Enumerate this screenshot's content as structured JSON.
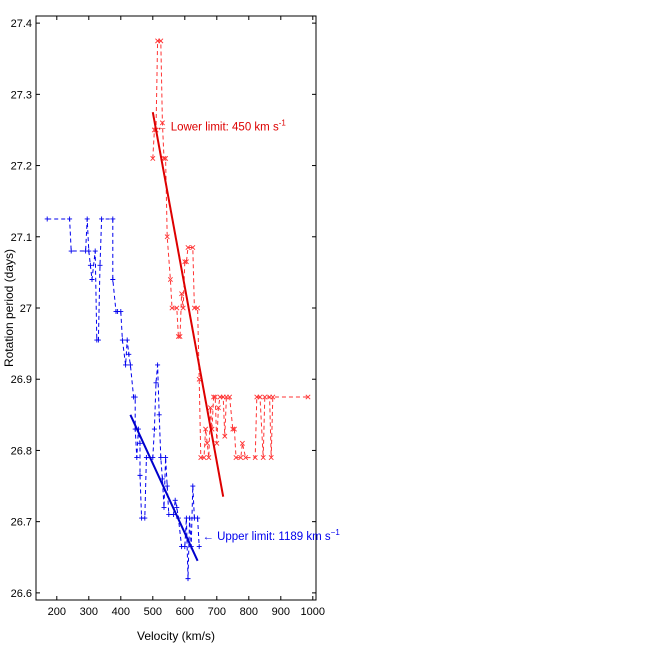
{
  "chart_data": {
    "type": "line",
    "title": "",
    "xlabel": "Velocity (km/s)",
    "ylabel": "Rotation period (days)",
    "xlim": [
      135,
      1010
    ],
    "ylim": [
      26.59,
      27.41
    ],
    "xticks": [
      200,
      300,
      400,
      500,
      600,
      700,
      800,
      900,
      1000
    ],
    "yticks": [
      26.6,
      26.7,
      26.8,
      26.9,
      27,
      27.1,
      27.2,
      27.3,
      27.4
    ],
    "xtick_labels": [
      "200",
      "300",
      "400",
      "500",
      "600",
      "700",
      "800",
      "900",
      "1000"
    ],
    "ytick_labels": [
      "26.6",
      "26.7",
      "26.8",
      "26.9",
      "27",
      "27.1",
      "27.2",
      "27.3",
      "27.4"
    ],
    "grid": false,
    "series": [
      {
        "color": "#0000ee",
        "style": "dashed-markers",
        "points": [
          [
            170,
            27.125
          ],
          [
            240,
            27.125
          ],
          [
            245,
            27.08
          ],
          [
            290,
            27.08
          ],
          [
            295,
            27.125
          ],
          [
            300,
            27.08
          ],
          [
            305,
            27.06
          ],
          [
            310,
            27.04
          ],
          [
            320,
            27.08
          ],
          [
            325,
            26.955
          ],
          [
            330,
            26.955
          ],
          [
            335,
            27.06
          ],
          [
            340,
            27.125
          ],
          [
            375,
            27.125
          ],
          [
            375,
            27.04
          ],
          [
            385,
            26.995
          ],
          [
            390,
            26.995
          ],
          [
            400,
            26.995
          ],
          [
            405,
            26.955
          ],
          [
            415,
            26.92
          ],
          [
            420,
            26.955
          ],
          [
            425,
            26.935
          ],
          [
            430,
            26.92
          ],
          [
            440,
            26.875
          ],
          [
            445,
            26.875
          ],
          [
            445,
            26.83
          ],
          [
            450,
            26.79
          ],
          [
            455,
            26.83
          ],
          [
            460,
            26.81
          ],
          [
            460,
            26.765
          ],
          [
            465,
            26.705
          ],
          [
            475,
            26.705
          ],
          [
            480,
            26.79
          ],
          [
            500,
            26.79
          ],
          [
            505,
            26.83
          ],
          [
            510,
            26.895
          ],
          [
            515,
            26.92
          ],
          [
            520,
            26.85
          ],
          [
            525,
            26.79
          ],
          [
            530,
            26.76
          ],
          [
            535,
            26.72
          ],
          [
            540,
            26.79
          ],
          [
            545,
            26.75
          ],
          [
            550,
            26.71
          ],
          [
            565,
            26.71
          ],
          [
            570,
            26.73
          ],
          [
            575,
            26.72
          ],
          [
            580,
            26.705
          ],
          [
            590,
            26.665
          ],
          [
            600,
            26.665
          ],
          [
            605,
            26.705
          ],
          [
            610,
            26.62
          ],
          [
            615,
            26.705
          ],
          [
            620,
            26.665
          ],
          [
            625,
            26.75
          ],
          [
            630,
            26.705
          ],
          [
            640,
            26.705
          ],
          [
            645,
            26.665
          ]
        ]
      },
      {
        "color": "#ff3333",
        "style": "dashed-markers",
        "points": [
          [
            500,
            27.21
          ],
          [
            505,
            27.25
          ],
          [
            510,
            27.25
          ],
          [
            515,
            27.375
          ],
          [
            525,
            27.375
          ],
          [
            530,
            27.26
          ],
          [
            535,
            27.21
          ],
          [
            540,
            27.21
          ],
          [
            545,
            27.1
          ],
          [
            555,
            27.04
          ],
          [
            560,
            27.0
          ],
          [
            575,
            27.0
          ],
          [
            580,
            26.96
          ],
          [
            585,
            26.96
          ],
          [
            590,
            27.02
          ],
          [
            595,
            27.0
          ],
          [
            600,
            27.065
          ],
          [
            605,
            27.065
          ],
          [
            610,
            27.085
          ],
          [
            625,
            27.085
          ],
          [
            630,
            27.0
          ],
          [
            640,
            27.0
          ],
          [
            645,
            26.9
          ],
          [
            650,
            26.79
          ],
          [
            660,
            26.79
          ],
          [
            665,
            26.83
          ],
          [
            670,
            26.81
          ],
          [
            675,
            26.79
          ],
          [
            680,
            26.86
          ],
          [
            685,
            26.83
          ],
          [
            690,
            26.875
          ],
          [
            695,
            26.875
          ],
          [
            700,
            26.81
          ],
          [
            705,
            26.86
          ],
          [
            710,
            26.875
          ],
          [
            720,
            26.875
          ],
          [
            725,
            26.82
          ],
          [
            730,
            26.875
          ],
          [
            740,
            26.875
          ],
          [
            750,
            26.83
          ],
          [
            755,
            26.83
          ],
          [
            760,
            26.79
          ],
          [
            775,
            26.79
          ],
          [
            780,
            26.81
          ],
          [
            790,
            26.79
          ],
          [
            820,
            26.79
          ],
          [
            825,
            26.875
          ],
          [
            835,
            26.875
          ],
          [
            845,
            26.79
          ],
          [
            850,
            26.875
          ],
          [
            865,
            26.875
          ],
          [
            870,
            26.79
          ],
          [
            875,
            26.875
          ],
          [
            985,
            26.875
          ]
        ]
      }
    ],
    "fits": [
      {
        "color": "#0000cc",
        "x": [
          430,
          640
        ],
        "y": [
          26.85,
          26.645
        ]
      },
      {
        "color": "#dd0000",
        "x": [
          500,
          720
        ],
        "y": [
          27.275,
          26.735
        ]
      }
    ],
    "annotations": [
      {
        "text": "← Upper limit: 1189 km s",
        "sup": "−1",
        "color": "#0000ee",
        "x": 655,
        "y": 26.68
      },
      {
        "text": "← Lower limit: 450 km s",
        "sup": "-1",
        "color": "#dd0000",
        "x": 510,
        "y": 27.255
      }
    ]
  }
}
